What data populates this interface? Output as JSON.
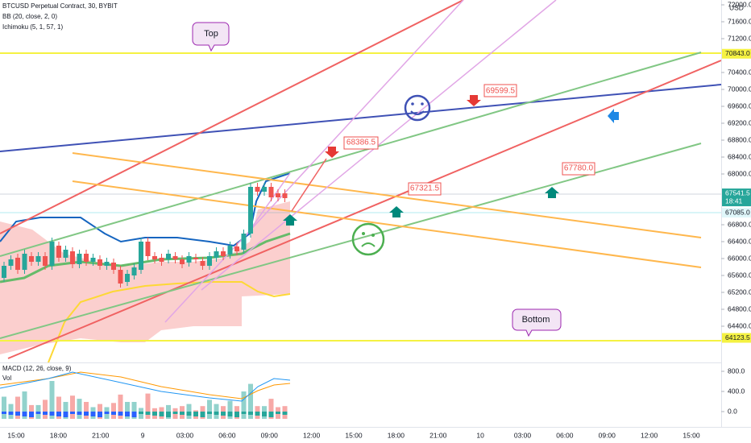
{
  "header": {
    "symbol": "BTCUSD Perpetual Contract, 30, BYBIT",
    "indicators": [
      "BB (20, close, 2, 0)",
      "Ichimoku (5, 1, 57, 1)"
    ],
    "currency": "USD"
  },
  "price_axis": {
    "ticks": [
      {
        "value": 72000,
        "label": "72000.0"
      },
      {
        "value": 71600,
        "label": "71600.0"
      },
      {
        "value": 71200,
        "label": "71200.0"
      },
      {
        "value": 70400,
        "label": "70400.0"
      },
      {
        "value": 70000,
        "label": "70000.0"
      },
      {
        "value": 69600,
        "label": "69600.0"
      },
      {
        "value": 69200,
        "label": "69200.0"
      },
      {
        "value": 68800,
        "label": "68800.0"
      },
      {
        "value": 68400,
        "label": "68400.0"
      },
      {
        "value": 68000,
        "label": "68000.0"
      },
      {
        "value": 66800,
        "label": "66800.0"
      },
      {
        "value": 66400,
        "label": "66400.0"
      },
      {
        "value": 66000,
        "label": "66000.0"
      },
      {
        "value": 65600,
        "label": "65600.0"
      },
      {
        "value": 65200,
        "label": "65200.0"
      },
      {
        "value": 64800,
        "label": "64800.0"
      },
      {
        "value": 64400,
        "label": "64400.0"
      }
    ],
    "highlights": [
      {
        "value": 70843,
        "label": "70843.0"
      },
      {
        "value": 67541.5,
        "label": "67541.5",
        "time": "18:41"
      },
      {
        "value": 67085,
        "label": "67085.0"
      },
      {
        "value": 64123.5,
        "label": "64123.5"
      }
    ]
  },
  "lower_pane": {
    "titles": [
      "MACD (12, 26, close, 9)",
      "Vol"
    ],
    "ticks": [
      {
        "value": 800,
        "label": "800.0"
      },
      {
        "value": 400,
        "label": "400.0"
      },
      {
        "value": 0,
        "label": "0.0"
      }
    ]
  },
  "time_axis": [
    "15:00",
    "18:00",
    "21:00",
    "9",
    "03:00",
    "06:00",
    "09:00",
    "12:00",
    "15:00",
    "18:00",
    "21:00",
    "10",
    "03:00",
    "06:00",
    "09:00",
    "12:00",
    "15:00"
  ],
  "annotations": {
    "top": "Top",
    "bottom": "Bottom",
    "price_labels": [
      "69599.5",
      "68386.5",
      "67321.5",
      "67780.0"
    ]
  }
}
